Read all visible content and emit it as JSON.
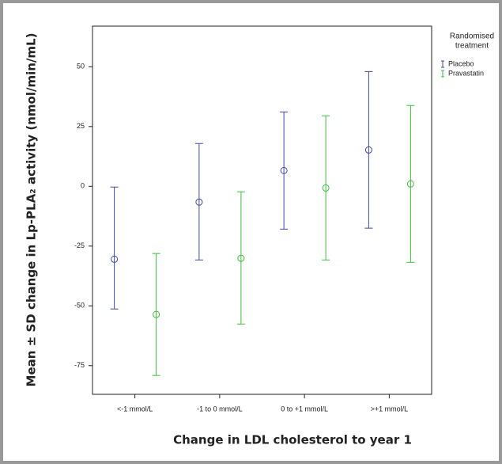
{
  "chart_data": {
    "type": "errorbar",
    "x_label": "Change in LDL cholesterol to year 1",
    "y_label": "Mean ± SD change in Lp-PLA₂ activity (nmol/min/mL)",
    "legend_title": [
      "Randomised",
      "treatment"
    ],
    "categories": [
      "<-1 mmol/L",
      "-1 to 0 mmol/L",
      "0 to +1 mmol/L",
      ">+1 mmol/L"
    ],
    "series": [
      {
        "name": "Placebo",
        "color": "#3f48a8",
        "values": [
          -30.5,
          -6.6,
          6.6,
          15.2
        ],
        "lower": [
          -51.3,
          -30.8,
          -17.9,
          -17.5
        ],
        "upper": [
          -0.3,
          17.9,
          31.1,
          48.0
        ]
      },
      {
        "name": "Pravastatin",
        "color": "#3dbf3d",
        "values": [
          -53.6,
          -30.1,
          -0.7,
          1.0
        ],
        "lower": [
          -79.1,
          -57.6,
          -30.8,
          -31.8
        ],
        "upper": [
          -28.1,
          -2.3,
          29.5,
          33.8
        ]
      }
    ],
    "ylim": [
      -87,
      67
    ],
    "yticks": [
      -75,
      -50,
      -25,
      0,
      25,
      50
    ]
  }
}
